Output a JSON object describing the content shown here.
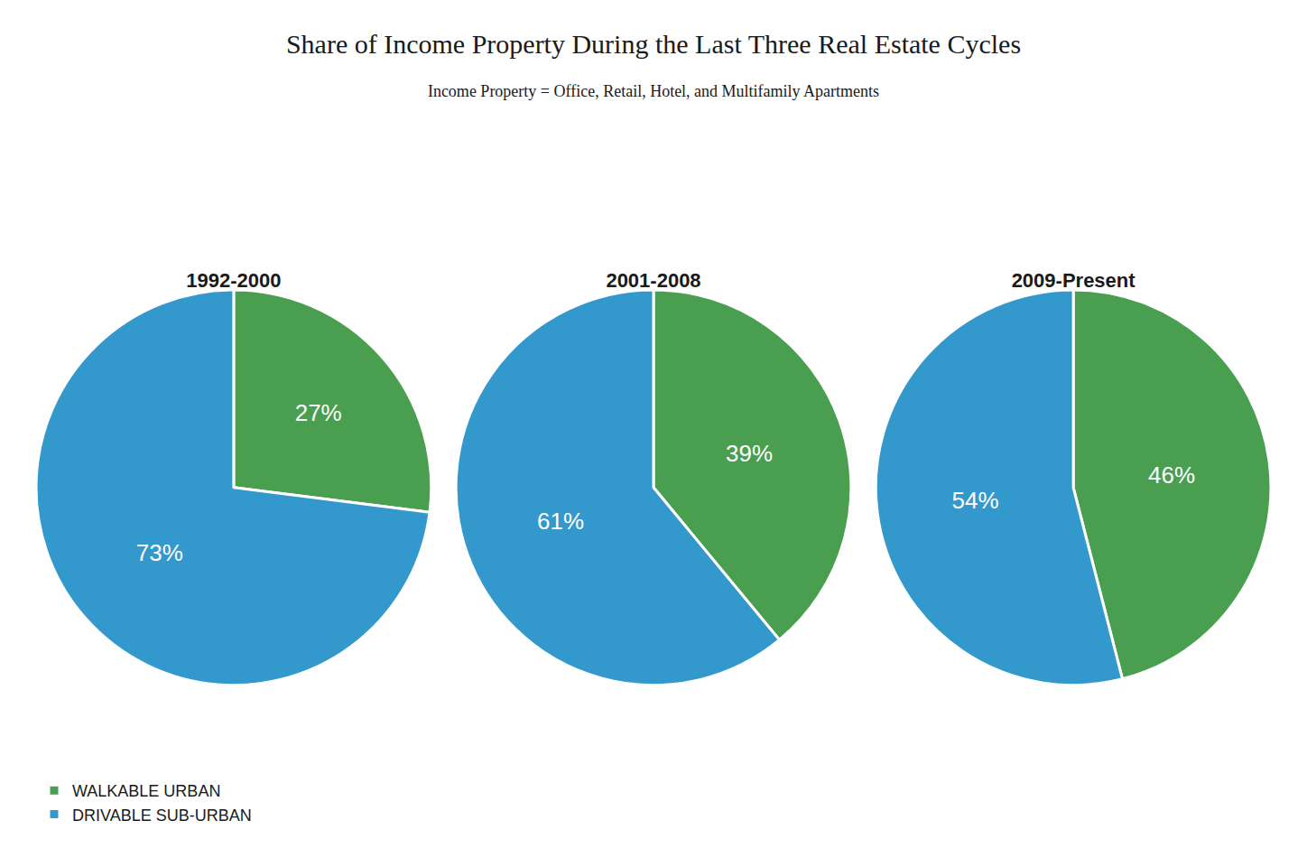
{
  "title": "Share of Income Property During the Last Three Real Estate Cycles",
  "subtitle": "Income Property = Office, Retail, Hotel, and Multifamily Apartments",
  "chart_data": [
    {
      "type": "pie",
      "title": "1992-2000",
      "categories": [
        "WALKABLE URBAN",
        "DRIVABLE SUB-URBAN"
      ],
      "values": [
        27,
        73
      ],
      "value_labels": [
        "27%",
        "73%"
      ],
      "data_labels": true,
      "colors": [
        "#4a9e4f",
        "#3399cc"
      ],
      "legend": "lower left"
    },
    {
      "type": "pie",
      "title": "2001-2008",
      "categories": [
        "WALKABLE URBAN",
        "DRIVABLE SUB-URBAN"
      ],
      "values": [
        39,
        61
      ],
      "value_labels": [
        "39%",
        "61%"
      ],
      "data_labels": true,
      "colors": [
        "#4a9e4f",
        "#3399cc"
      ],
      "legend": "lower left"
    },
    {
      "type": "pie",
      "title": "2009-Present",
      "categories": [
        "WALKABLE URBAN",
        "DRIVABLE SUB-URBAN"
      ],
      "values": [
        46,
        54
      ],
      "value_labels": [
        "46%",
        "54%"
      ],
      "data_labels": true,
      "colors": [
        "#4a9e4f",
        "#3399cc"
      ],
      "legend": "lower left"
    }
  ]
}
